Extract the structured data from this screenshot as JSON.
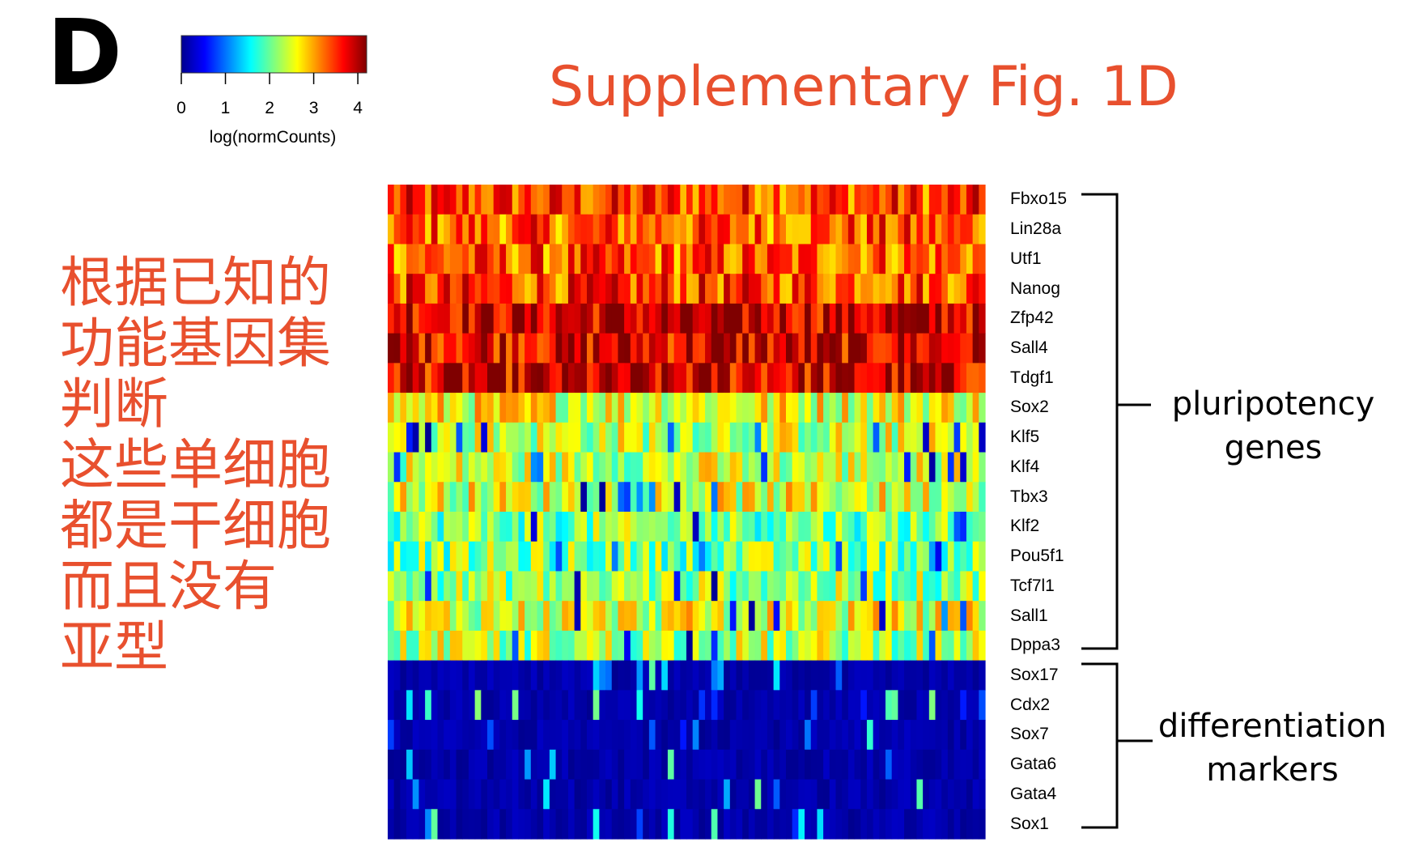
{
  "panel_letter": "D",
  "figure_title": "Supplementary Fig. 1D",
  "annotation_lines": [
    "根据已知的",
    "功能基因集",
    "判断",
    "这些单细胞",
    "都是干细胞",
    "而且没有",
    "亚型"
  ],
  "legend": {
    "title": "log(normCounts)",
    "ticks": [
      "0",
      "1",
      "2",
      "3",
      "4"
    ],
    "range": [
      0,
      4.2
    ],
    "colormap": [
      "#00008f",
      "#0000ff",
      "#007fff",
      "#00ffff",
      "#7fff7f",
      "#ffff00",
      "#ff7f00",
      "#ff0000",
      "#7f0000"
    ]
  },
  "groups": [
    {
      "line1": "pluripotency",
      "line2": "genes"
    },
    {
      "line1": "differentiation",
      "line2": "markers"
    }
  ],
  "chart_data": {
    "type": "heatmap",
    "title": "Supplementary Fig. 1D",
    "colorbar_label": "log(normCounts)",
    "value_range": [
      0,
      4.2
    ],
    "genes": [
      "Fbxo15",
      "Lin28a",
      "Utf1",
      "Nanog",
      "Zfp42",
      "Sall4",
      "Tdgf1",
      "Sox2",
      "Klf5",
      "Klf4",
      "Tbx3",
      "Klf2",
      "Pou5f1",
      "Tcf7l1",
      "Sall1",
      "Dppa3",
      "Sox17",
      "Cdx2",
      "Sox7",
      "Gata6",
      "Gata4",
      "Sox1"
    ],
    "gene_groups": [
      {
        "name": "pluripotency genes",
        "genes": [
          "Fbxo15",
          "Lin28a",
          "Utf1",
          "Nanog",
          "Zfp42",
          "Sall4",
          "Tdgf1",
          "Sox2",
          "Klf5",
          "Klf4",
          "Tbx3",
          "Klf2",
          "Pou5f1",
          "Tcf7l1",
          "Sall1",
          "Dppa3"
        ]
      },
      {
        "name": "differentiation markers",
        "genes": [
          "Sox17",
          "Cdx2",
          "Sox7",
          "Gata6",
          "Gata4",
          "Sox1"
        ]
      }
    ],
    "n_cells": 96,
    "mean_expression": [
      3.4,
      3.3,
      3.3,
      3.4,
      3.9,
      3.8,
      3.8,
      2.6,
      2.4,
      2.4,
      2.5,
      2.1,
      2.1,
      2.2,
      2.5,
      2.3,
      0.1,
      0.1,
      0.1,
      0.2,
      0.2,
      0.1
    ]
  }
}
